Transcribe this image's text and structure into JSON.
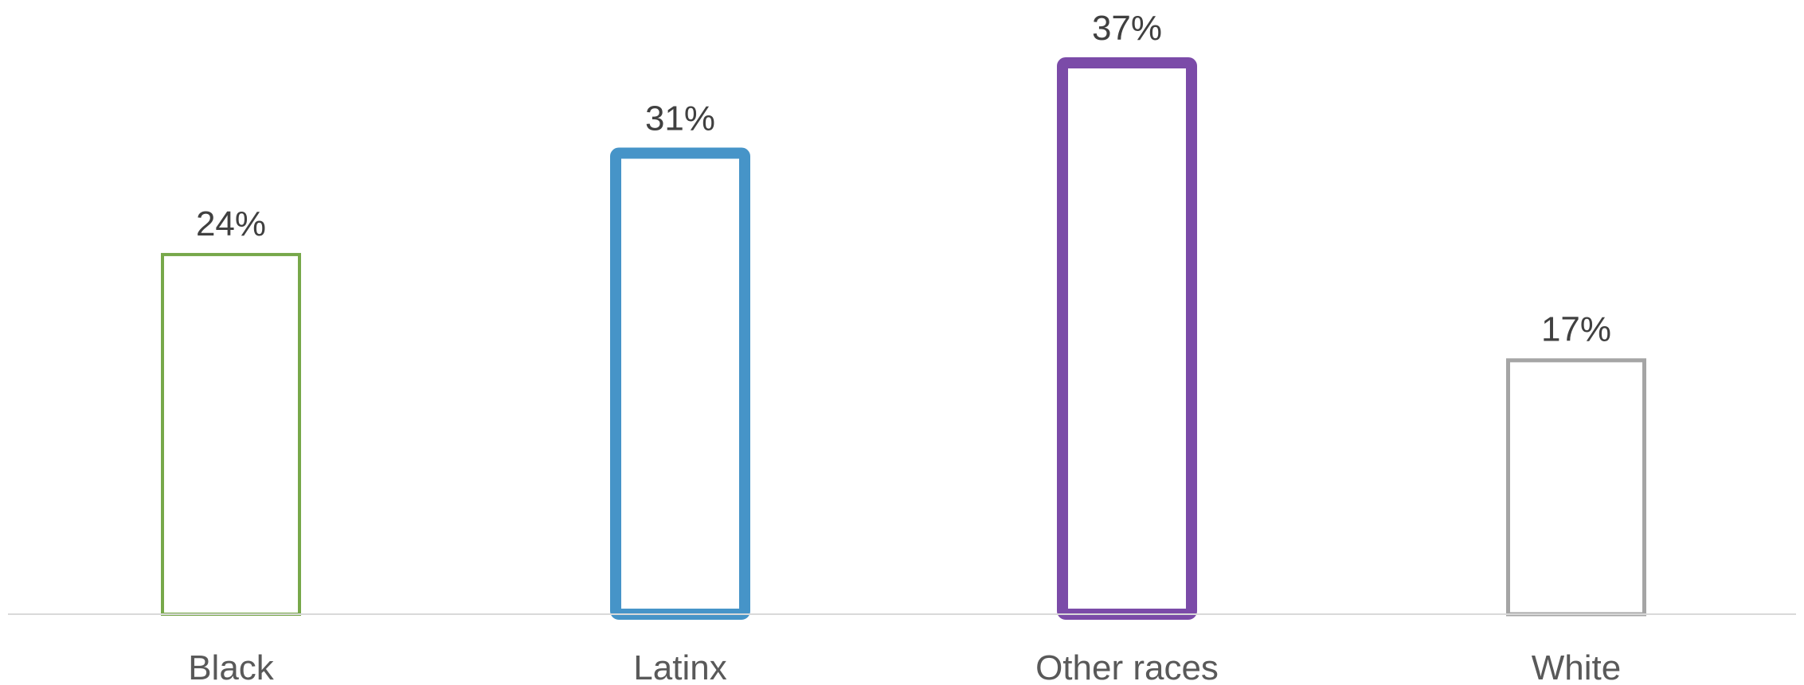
{
  "chart_data": {
    "type": "bar",
    "categories": [
      "Black",
      "Latinx",
      "Other races",
      "White"
    ],
    "values": [
      24,
      31,
      37,
      17
    ],
    "value_labels": [
      "24%",
      "31%",
      "37%",
      "17%"
    ],
    "unit": "%",
    "ylim": [
      0,
      37
    ],
    "grid": false,
    "legend": "none",
    "bar_style": "outline",
    "colors": [
      "#77A84A",
      "#4694C8",
      "#7B4BA8",
      "#A5A5A5"
    ],
    "axis_color": "#D9D9D9"
  }
}
